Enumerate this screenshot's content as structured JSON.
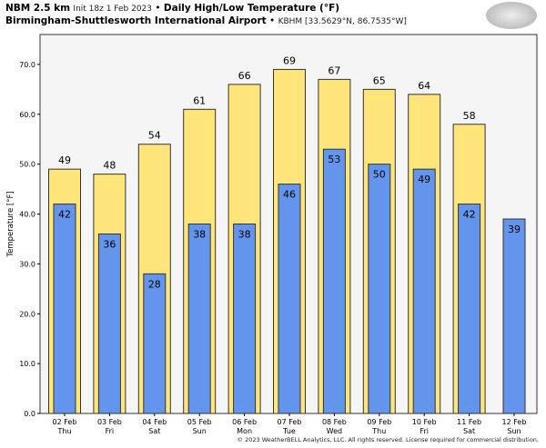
{
  "header": {
    "model": "NBM 2.5 km",
    "init": "Init 18z 1 Feb 2023",
    "title": "Daily High/Low Temperature (°F)",
    "station": "Birmingham-Shuttlesworth International Airport",
    "station_info": "KBHM [33.5629°N, 86.7535°W]",
    "logo": "WeatherBELL",
    "sep": "•"
  },
  "footer": {
    "copyright": "© 2023 WeatherBELL Analytics, LLC. All rights reserved. License required for commercial distribution."
  },
  "chart_data": {
    "type": "bar",
    "categories": [
      "02 Feb",
      "03 Feb",
      "04 Feb",
      "05 Feb",
      "06 Feb",
      "07 Feb",
      "08 Feb",
      "09 Feb",
      "10 Feb",
      "11 Feb",
      "12 Feb"
    ],
    "weekdays": [
      "Thu",
      "Fri",
      "Sat",
      "Sun",
      "Mon",
      "Tue",
      "Wed",
      "Thu",
      "Fri",
      "Sat",
      "Sun"
    ],
    "series": [
      {
        "values": [
          49,
          48,
          54,
          61,
          66,
          69,
          67,
          65,
          64,
          58,
          null
        ],
        "color": "#ffe57a"
      },
      {
        "values": [
          42,
          36,
          28,
          38,
          38,
          46,
          53,
          50,
          49,
          42,
          39
        ],
        "color": "#6495ed"
      }
    ],
    "ylabel": "Temperature [°F]",
    "yticks": [
      "0.0",
      "10.0",
      "20.0",
      "30.0",
      "40.0",
      "50.0",
      "60.0",
      "70.0"
    ],
    "ylim": [
      0,
      76
    ],
    "grid": false
  }
}
